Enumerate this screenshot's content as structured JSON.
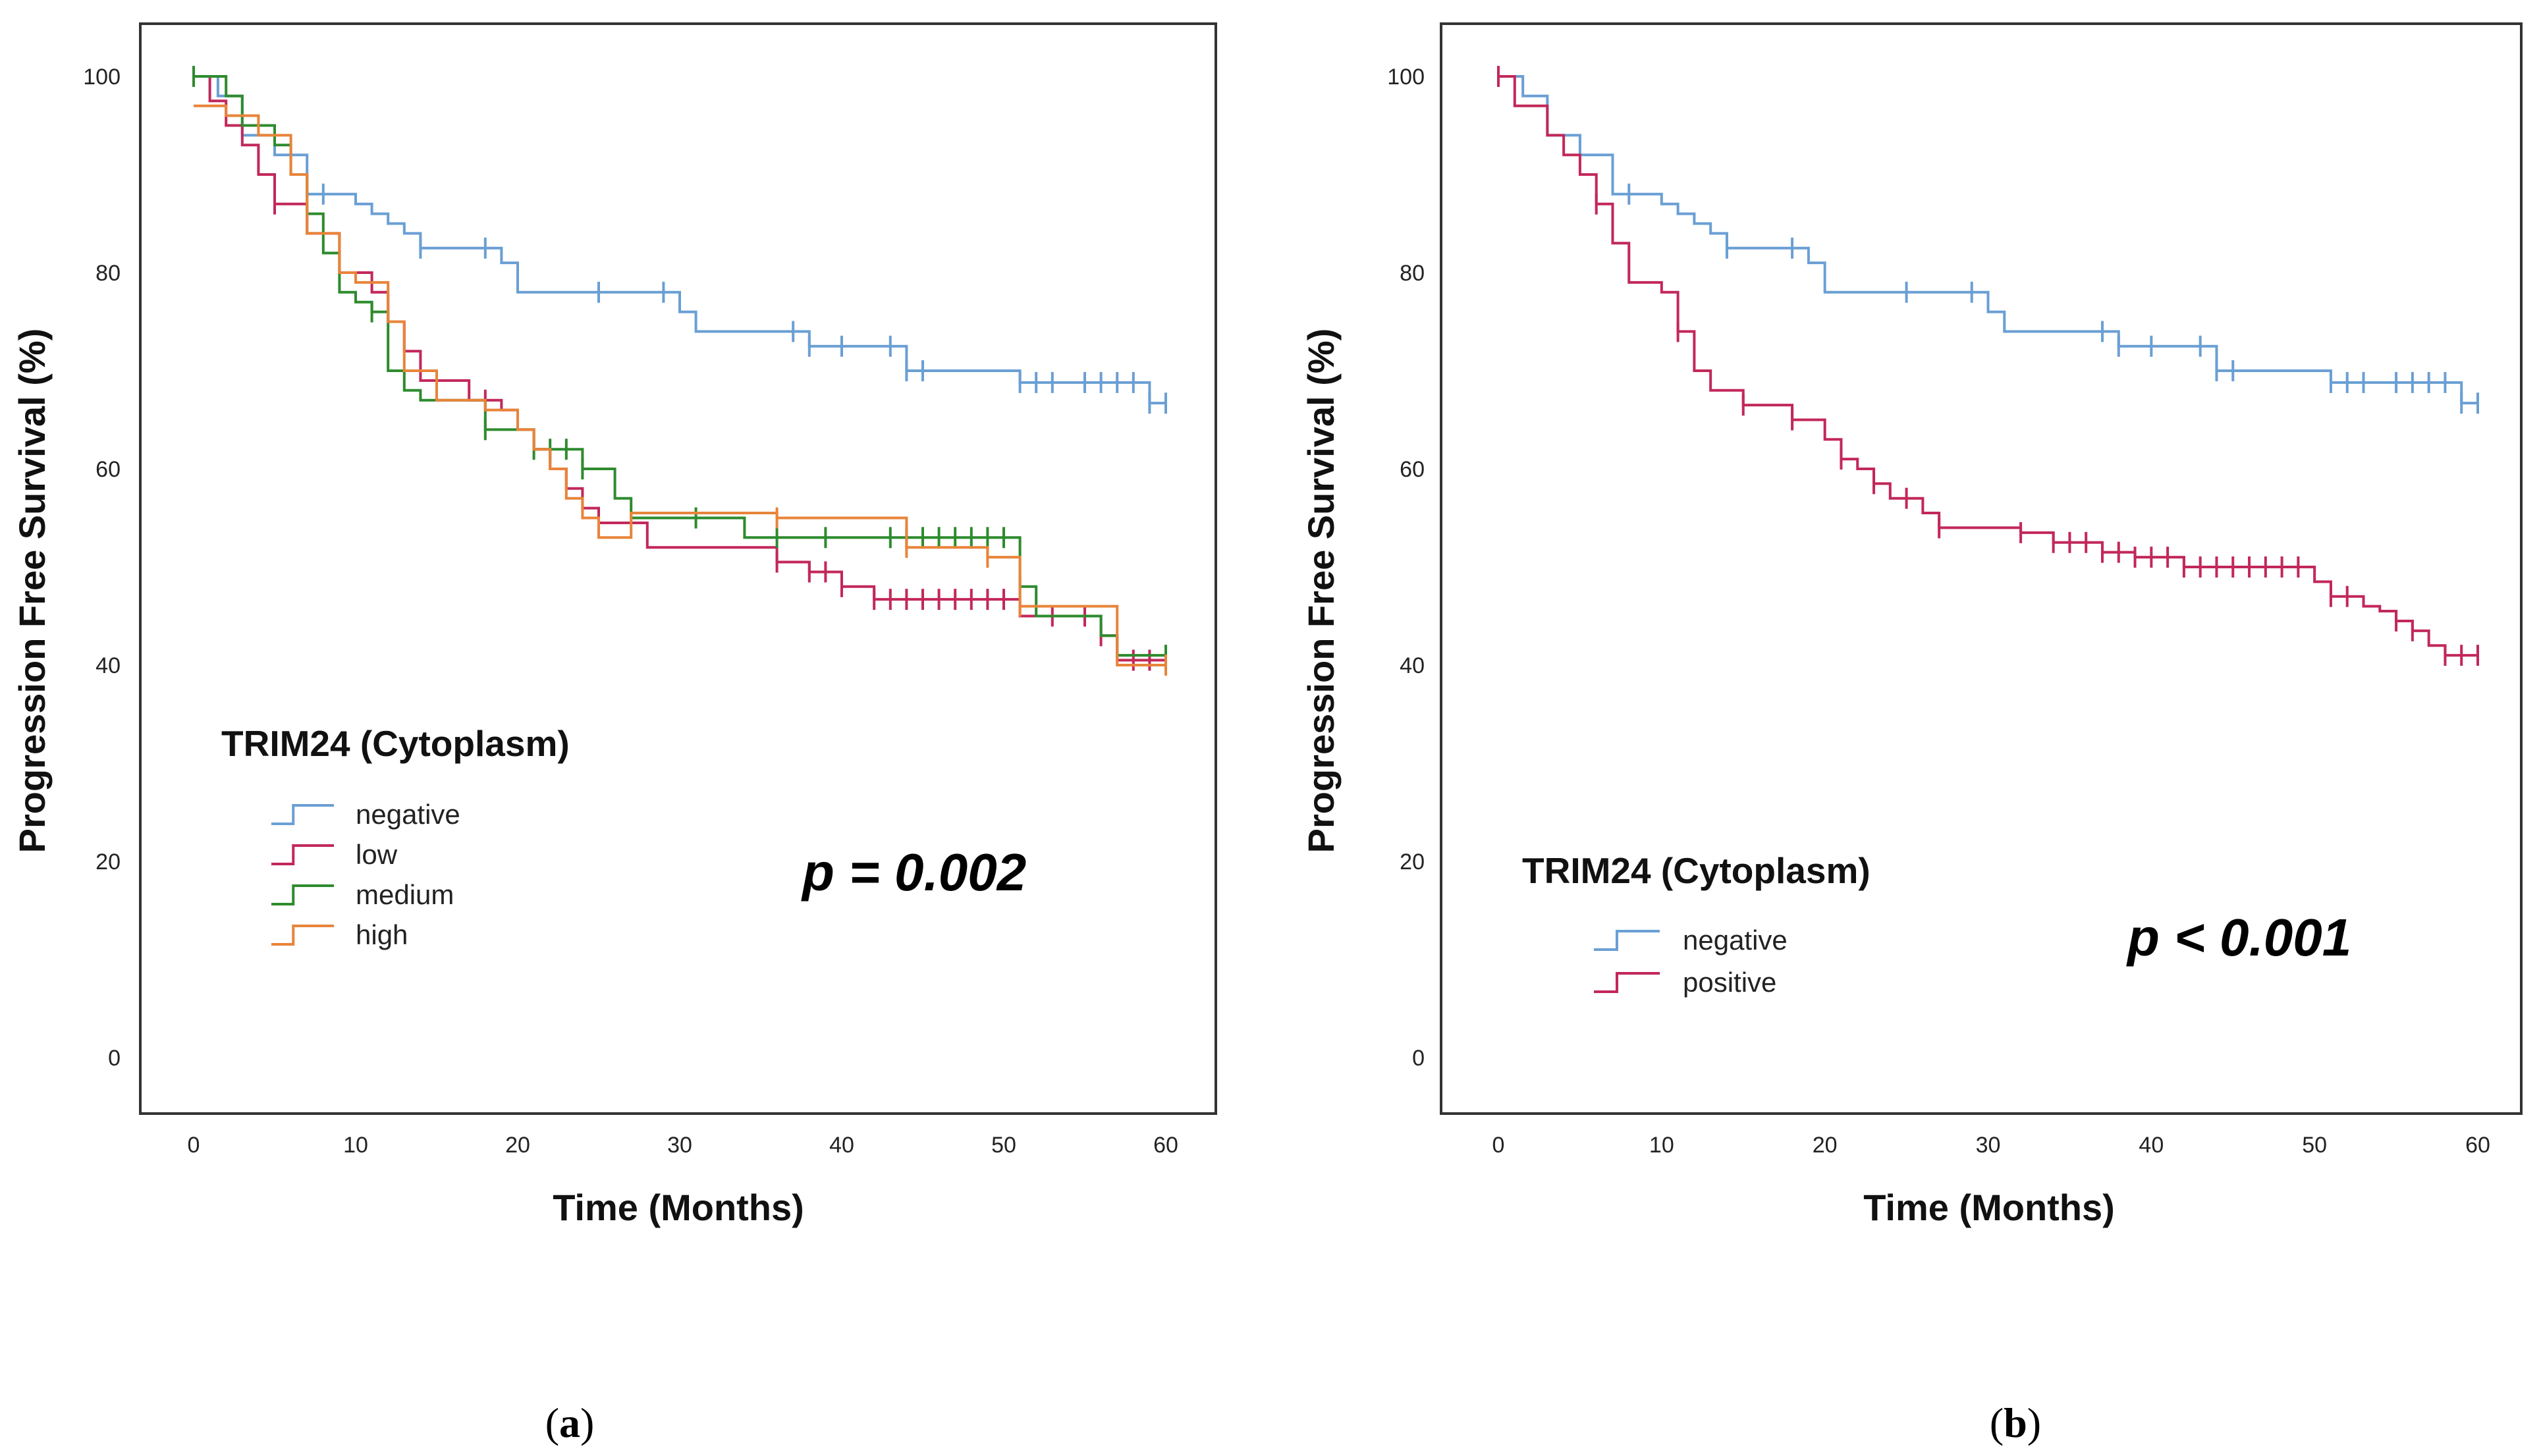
{
  "figure": {
    "caption_a": "a",
    "caption_b": "b"
  },
  "colors": {
    "negative": "#6a9fd4",
    "low": "#c2285a",
    "medium": "#2e8b2e",
    "high": "#e8843a",
    "positive": "#c2285a"
  },
  "chart_data": [
    {
      "type": "line",
      "subtype": "kaplan-meier-step",
      "panel": "a",
      "title": "",
      "xlabel": "Time (Months)",
      "ylabel": "Progression Free Survival (%)",
      "xlim": [
        0,
        60
      ],
      "ylim": [
        0,
        100
      ],
      "xticks": [
        0,
        10,
        20,
        30,
        40,
        50,
        60
      ],
      "yticks": [
        0,
        20,
        40,
        60,
        80,
        100
      ],
      "legend_title": "TRIM24 (Cytoplasm)",
      "legend_position": "bottom-left",
      "annotation": "p = 0.002",
      "series": [
        {
          "name": "negative",
          "color_key": "negative",
          "x": [
            0,
            1.5,
            3,
            5,
            7,
            10,
            11,
            12,
            13,
            14,
            18,
            19,
            20,
            28,
            30,
            31,
            37,
            38,
            43,
            44,
            50,
            51,
            59,
            60
          ],
          "y": [
            100,
            98,
            94,
            92,
            88,
            87,
            86,
            85,
            84,
            82.5,
            82.5,
            81,
            78,
            78,
            76,
            74,
            74,
            72.5,
            72.5,
            70,
            70,
            68.8,
            66.7,
            66.7
          ],
          "censor_x": [
            8,
            14,
            18,
            25,
            29,
            37,
            38,
            40,
            43,
            44,
            45,
            51,
            52,
            53,
            55,
            56,
            57,
            58,
            59,
            60
          ]
        },
        {
          "name": "low",
          "color_key": "low",
          "x": [
            0,
            1,
            2,
            3,
            4,
            5,
            7,
            9,
            11,
            12,
            13,
            14,
            17,
            19,
            20,
            21,
            22,
            23,
            24,
            25,
            26,
            28,
            33,
            36,
            38,
            40,
            42,
            50,
            51,
            56,
            57,
            60
          ],
          "y": [
            100,
            97.5,
            95,
            93,
            90,
            87,
            84,
            80,
            78,
            75,
            72,
            69,
            67,
            66,
            64,
            62,
            60,
            58,
            56,
            54.5,
            54.5,
            52,
            52,
            50.5,
            49.5,
            48,
            46.7,
            46.7,
            45,
            43,
            40.5,
            40.5
          ],
          "censor_x": [
            5,
            18,
            36,
            38,
            39,
            40,
            42,
            43,
            44,
            45,
            46,
            47,
            48,
            49,
            50,
            53,
            55,
            56,
            58,
            59,
            60
          ]
        },
        {
          "name": "medium",
          "color_key": "medium",
          "x": [
            0,
            2,
            3,
            5,
            6,
            7,
            8,
            9,
            10,
            11,
            12,
            13,
            14,
            18,
            21,
            24,
            26,
            27,
            34,
            50,
            51,
            52,
            56,
            57,
            60
          ],
          "y": [
            100,
            98,
            95,
            93,
            90,
            86,
            82,
            78,
            77,
            76,
            70,
            68,
            67,
            64,
            62,
            60,
            57,
            55,
            53,
            53,
            48,
            45,
            43,
            41,
            41
          ],
          "censor_x": [
            0,
            11,
            18,
            21,
            22,
            23,
            24,
            31,
            36,
            39,
            43,
            44,
            45,
            46,
            47,
            48,
            49,
            50,
            51,
            60
          ]
        },
        {
          "name": "high",
          "color_key": "high",
          "x": [
            0,
            2,
            4,
            6,
            7,
            9,
            10,
            12,
            13,
            15,
            18,
            20,
            21,
            22,
            23,
            24,
            25,
            27,
            36,
            44,
            49,
            51,
            57,
            60
          ],
          "y": [
            97,
            96,
            94,
            90,
            84,
            80,
            79,
            75,
            70,
            67,
            66,
            64,
            62,
            60,
            57,
            55,
            53,
            55.5,
            55,
            52,
            51,
            46,
            40,
            40
          ],
          "censor_x": [
            36,
            44,
            49,
            51,
            60
          ]
        }
      ]
    },
    {
      "type": "line",
      "subtype": "kaplan-meier-step",
      "panel": "b",
      "title": "",
      "xlabel": "Time (Months)",
      "ylabel": "Progression Free Survival (%)",
      "xlim": [
        0,
        60
      ],
      "ylim": [
        0,
        100
      ],
      "xticks": [
        0,
        10,
        20,
        30,
        40,
        50,
        60
      ],
      "yticks": [
        0,
        20,
        40,
        60,
        80,
        100
      ],
      "legend_title": "TRIM24 (Cytoplasm)",
      "legend_position": "bottom-left",
      "annotation": "p < 0.001",
      "series": [
        {
          "name": "negative",
          "color_key": "negative",
          "x": [
            0,
            1.5,
            3,
            5,
            7,
            10,
            11,
            12,
            13,
            14,
            18,
            19,
            20,
            28,
            30,
            31,
            37,
            38,
            43,
            44,
            50,
            51,
            59,
            60
          ],
          "y": [
            100,
            98,
            94,
            92,
            88,
            87,
            86,
            85,
            84,
            82.5,
            82.5,
            81,
            78,
            78,
            76,
            74,
            74,
            72.5,
            72.5,
            70,
            70,
            68.8,
            66.7,
            66.7
          ],
          "censor_x": [
            8,
            14,
            18,
            25,
            29,
            37,
            38,
            40,
            43,
            44,
            45,
            51,
            52,
            53,
            55,
            56,
            57,
            58,
            59,
            60
          ]
        },
        {
          "name": "positive",
          "color_key": "positive",
          "x": [
            0,
            1,
            3,
            4,
            5,
            6,
            7,
            8,
            10,
            11,
            12,
            13,
            15,
            18,
            20,
            21,
            22,
            23,
            24,
            26,
            27,
            32,
            34,
            37,
            39,
            42,
            49,
            50,
            51,
            53,
            54,
            55,
            56,
            57,
            58,
            60
          ],
          "y": [
            100,
            97,
            94,
            92,
            90,
            87,
            83,
            79,
            78,
            74,
            70,
            68,
            66.5,
            65,
            63,
            61,
            60,
            58.5,
            57,
            55.5,
            54,
            53.5,
            52.5,
            51.5,
            51,
            50,
            50,
            48.5,
            47,
            46,
            45.5,
            44.5,
            43.5,
            42,
            41,
            41
          ],
          "censor_x": [
            0,
            6,
            11,
            15,
            18,
            21,
            23,
            25,
            27,
            32,
            34,
            35,
            36,
            37,
            38,
            39,
            40,
            41,
            42,
            43,
            44,
            45,
            46,
            47,
            48,
            49,
            51,
            52,
            55,
            56,
            58,
            59,
            60
          ]
        }
      ]
    }
  ]
}
